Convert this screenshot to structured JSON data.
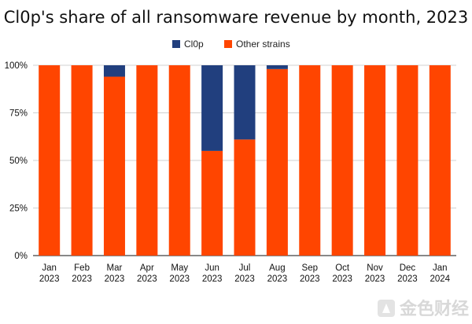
{
  "watermark": {
    "label": "金色财经"
  },
  "chart_data": {
    "type": "bar",
    "stacked": true,
    "title": "Cl0p's share of all ransomware revenue by month, 2023",
    "xlabel": "",
    "ylabel": "",
    "ylim": [
      0,
      100
    ],
    "yticks": [
      0,
      25,
      50,
      75,
      100
    ],
    "ytick_suffix": "%",
    "legend_position": "top-center",
    "categories": [
      [
        "Jan",
        "2023"
      ],
      [
        "Feb",
        "2023"
      ],
      [
        "Mar",
        "2023"
      ],
      [
        "Apr",
        "2023"
      ],
      [
        "May",
        "2023"
      ],
      [
        "Jun",
        "2023"
      ],
      [
        "Jul",
        "2023"
      ],
      [
        "Aug",
        "2023"
      ],
      [
        "Sep",
        "2023"
      ],
      [
        "Oct",
        "2023"
      ],
      [
        "Nov",
        "2023"
      ],
      [
        "Dec",
        "2023"
      ],
      [
        "Jan",
        "2024"
      ]
    ],
    "series": [
      {
        "name": "Other strains",
        "color": "#ff4500",
        "values": [
          100,
          100,
          94,
          100,
          100,
          55,
          61,
          98,
          100,
          100,
          100,
          100,
          100
        ]
      },
      {
        "name": "Cl0p",
        "color": "#213f7e",
        "values": [
          0,
          0,
          6,
          0,
          0,
          45,
          39,
          2,
          0,
          0,
          0,
          0,
          0
        ]
      }
    ],
    "legend_order": [
      "Cl0p",
      "Other strains"
    ]
  }
}
